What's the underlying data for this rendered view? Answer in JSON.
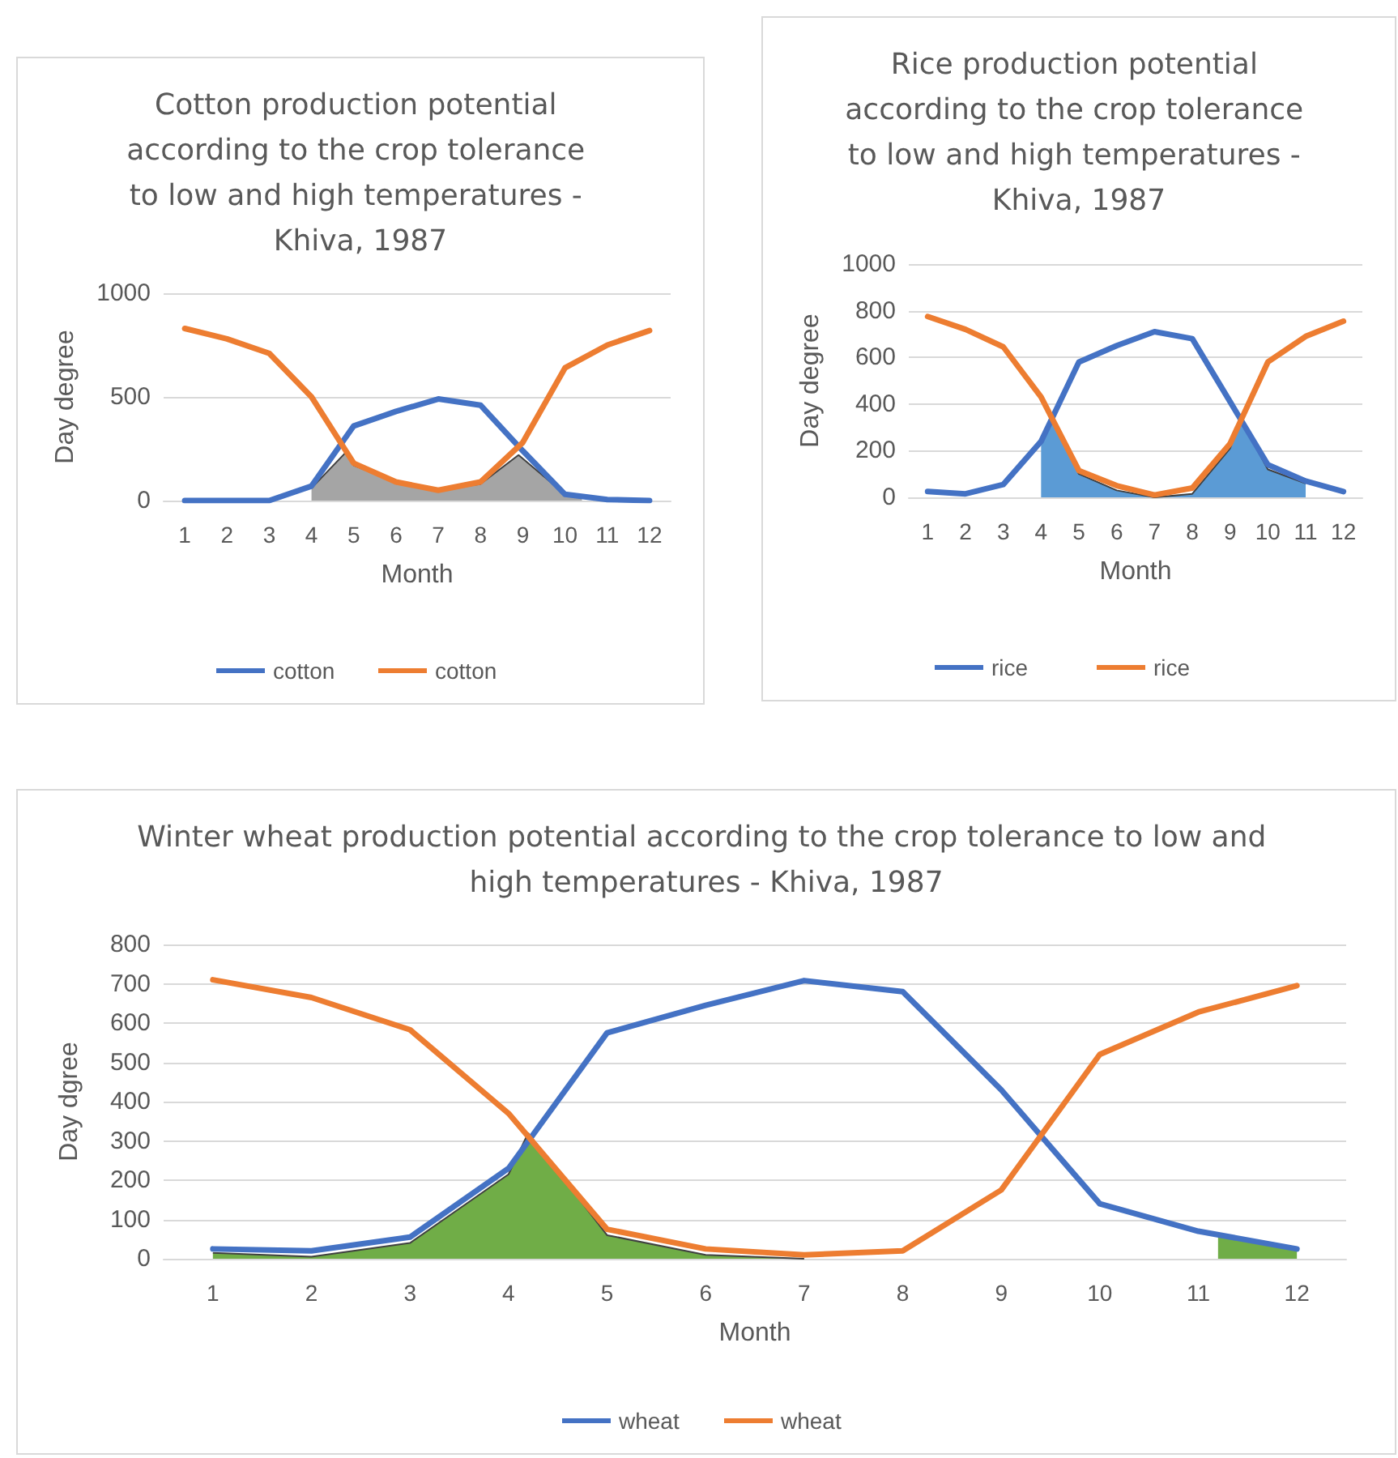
{
  "chart_data": [
    {
      "type": "line",
      "title": "Cotton production potential according to the crop tolerance to low and high temperatures - Khiva, 1987",
      "xlabel": "Month",
      "ylabel": "Day degree",
      "x": [
        1,
        2,
        3,
        4,
        5,
        6,
        7,
        8,
        9,
        10,
        11,
        12
      ],
      "xlim": [
        0.5,
        12.5
      ],
      "xticks": [
        1,
        2,
        3,
        4,
        5,
        6,
        7,
        8,
        9,
        10,
        11,
        12
      ],
      "ylim": [
        0,
        1000
      ],
      "yticks": [
        0,
        500,
        1000
      ],
      "grid": "y",
      "legend": "bottom",
      "marker": "none",
      "series": [
        {
          "name": "cotton",
          "color": "#4472c4",
          "values": [
            0,
            0,
            0,
            70,
            360,
            430,
            490,
            460,
            240,
            30,
            5,
            0
          ]
        },
        {
          "name": "cotton",
          "color": "#ed7d31",
          "values": [
            830,
            780,
            710,
            500,
            180,
            90,
            50,
            90,
            280,
            640,
            750,
            820
          ]
        },
        {
          "type": "area",
          "color": "#a5a5a5",
          "x": [
            4,
            4.8,
            5,
            6,
            7,
            8,
            8.9,
            10,
            10.4
          ],
          "values": [
            60,
            230,
            170,
            90,
            50,
            80,
            220,
            30,
            20
          ]
        }
      ]
    },
    {
      "type": "line",
      "title": "Rice production potential according to the crop tolerance to low and high temperatures - Khiva, 1987",
      "xlabel": "Month",
      "ylabel": "Day degree",
      "x": [
        1,
        2,
        3,
        4,
        5,
        6,
        7,
        8,
        9,
        10,
        11,
        12
      ],
      "xlim": [
        0.5,
        12.5
      ],
      "xticks": [
        1,
        2,
        3,
        4,
        5,
        6,
        7,
        8,
        9,
        10,
        11,
        12
      ],
      "ylim": [
        0,
        1000
      ],
      "yticks": [
        0,
        200,
        400,
        600,
        800,
        1000
      ],
      "grid": "y",
      "legend": "bottom",
      "marker": "none",
      "series": [
        {
          "name": "rice",
          "color": "#4472c4",
          "values": [
            25,
            15,
            55,
            240,
            580,
            650,
            710,
            680,
            410,
            140,
            70,
            25
          ]
        },
        {
          "name": "rice",
          "color": "#ed7d31",
          "values": [
            775,
            720,
            645,
            430,
            115,
            50,
            10,
            40,
            230,
            580,
            690,
            755
          ]
        },
        {
          "type": "area",
          "color": "#5b9bd5",
          "x": [
            4,
            4.3,
            5,
            6,
            7,
            8,
            9,
            9.3,
            10,
            11
          ],
          "values": [
            240,
            330,
            100,
            30,
            0,
            15,
            210,
            330,
            120,
            60
          ]
        }
      ]
    },
    {
      "type": "line",
      "title": "Winter wheat production potential according to the crop tolerance to low and high temperatures - Khiva, 1987",
      "xlabel": "Month",
      "ylabel": "Day dgree",
      "x": [
        1,
        2,
        3,
        4,
        5,
        6,
        7,
        8,
        9,
        10,
        11,
        12
      ],
      "xlim": [
        0.5,
        12.5
      ],
      "xticks": [
        1,
        2,
        3,
        4,
        5,
        6,
        7,
        8,
        9,
        10,
        11,
        12
      ],
      "ylim": [
        0,
        800
      ],
      "yticks": [
        0,
        100,
        200,
        300,
        400,
        500,
        600,
        700,
        800
      ],
      "grid": "y",
      "legend": "bottom",
      "marker": "none",
      "series": [
        {
          "name": "wheat",
          "color": "#4472c4",
          "values": [
            25,
            20,
            55,
            230,
            575,
            645,
            708,
            680,
            430,
            140,
            70,
            25
          ]
        },
        {
          "name": "wheat",
          "color": "#ed7d31",
          "values": [
            710,
            665,
            583,
            370,
            75,
            25,
            10,
            20,
            175,
            520,
            628,
            695
          ]
        },
        {
          "type": "area",
          "color": "#70ad47",
          "x": [
            1,
            2,
            3,
            4,
            4.2,
            5,
            6,
            7,
            9,
            11.2,
            12
          ],
          "values": [
            15,
            5,
            40,
            215,
            320,
            60,
            10,
            0,
            null,
            60,
            25
          ]
        }
      ]
    }
  ]
}
